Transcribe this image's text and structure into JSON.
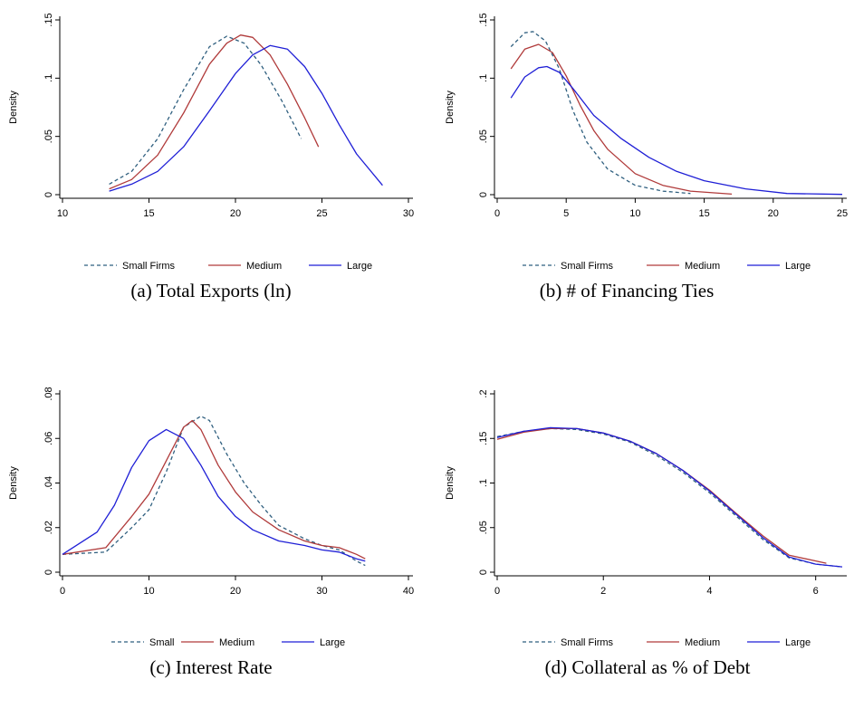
{
  "chart_data": [
    {
      "type": "line",
      "caption": "(a)  Total Exports (ln)",
      "ylabel": "Density",
      "xlim": [
        10,
        30
      ],
      "ylim": [
        0,
        0.15
      ],
      "xticks": [
        10,
        15,
        20,
        25,
        30
      ],
      "xtick_labels": [
        "10",
        "15",
        "20",
        "25",
        "30"
      ],
      "yticks": [
        0,
        0.05,
        0.1,
        0.15
      ],
      "ytick_labels": [
        "0",
        ".05",
        ".1",
        ".15"
      ],
      "legend_position": "bottom",
      "series": [
        {
          "name": "Small Firms",
          "color": "#2f5f7f",
          "dash": "dashed",
          "x": [
            12.7,
            14,
            15.5,
            17,
            18.5,
            19.5,
            20.5,
            21.5,
            22.7,
            23.8
          ],
          "y": [
            0.009,
            0.02,
            0.048,
            0.09,
            0.127,
            0.136,
            0.13,
            0.111,
            0.08,
            0.048
          ]
        },
        {
          "name": "Medium",
          "color": "#b03a3a",
          "dash": "solid",
          "x": [
            12.7,
            14,
            15.5,
            17,
            18.5,
            19.5,
            20.3,
            21,
            22,
            23,
            24,
            24.8
          ],
          "y": [
            0.005,
            0.013,
            0.034,
            0.07,
            0.112,
            0.13,
            0.137,
            0.135,
            0.12,
            0.095,
            0.066,
            0.041
          ]
        },
        {
          "name": "Large",
          "color": "#1f1fd6",
          "dash": "solid",
          "x": [
            12.7,
            14,
            15.5,
            17,
            18.5,
            20,
            21,
            22,
            23,
            24,
            25,
            26,
            27,
            28.5
          ],
          "y": [
            0.003,
            0.009,
            0.02,
            0.041,
            0.072,
            0.104,
            0.12,
            0.128,
            0.125,
            0.11,
            0.087,
            0.06,
            0.035,
            0.008
          ]
        }
      ]
    },
    {
      "type": "line",
      "caption": "(b)  # of Financing Ties",
      "ylabel": "Density",
      "xlim": [
        0,
        25
      ],
      "ylim": [
        0,
        0.15
      ],
      "xticks": [
        0,
        5,
        10,
        15,
        20,
        25
      ],
      "xtick_labels": [
        "0",
        "5",
        "10",
        "15",
        "20",
        "25"
      ],
      "yticks": [
        0,
        0.05,
        0.1,
        0.15
      ],
      "ytick_labels": [
        "0",
        ".05",
        ".1",
        ".15"
      ],
      "legend_position": "bottom",
      "series": [
        {
          "name": "Small Firms",
          "color": "#2f5f7f",
          "dash": "dashed",
          "x": [
            1,
            2,
            2.6,
            3.5,
            4.5,
            5.5,
            6.5,
            8,
            10,
            12,
            14
          ],
          "y": [
            0.127,
            0.139,
            0.14,
            0.132,
            0.108,
            0.072,
            0.045,
            0.022,
            0.008,
            0.003,
            0.001
          ]
        },
        {
          "name": "Medium",
          "color": "#b03a3a",
          "dash": "solid",
          "x": [
            1,
            2,
            3,
            4,
            5,
            6,
            7,
            8,
            10,
            12,
            14,
            17
          ],
          "y": [
            0.108,
            0.125,
            0.129,
            0.122,
            0.102,
            0.077,
            0.055,
            0.039,
            0.018,
            0.008,
            0.003,
            0.0005
          ]
        },
        {
          "name": "Large",
          "color": "#1f1fd6",
          "dash": "solid",
          "x": [
            1,
            2,
            3,
            3.6,
            4.5,
            5.5,
            7,
            9,
            11,
            13,
            15,
            18,
            21,
            25
          ],
          "y": [
            0.083,
            0.101,
            0.109,
            0.11,
            0.105,
            0.091,
            0.068,
            0.048,
            0.032,
            0.02,
            0.012,
            0.005,
            0.001,
            0.0002
          ]
        }
      ]
    },
    {
      "type": "line",
      "caption": "(c)  Interest Rate",
      "ylabel": "Density",
      "xlim": [
        0,
        40
      ],
      "ylim": [
        0,
        0.08
      ],
      "xticks": [
        0,
        10,
        20,
        30,
        40
      ],
      "xtick_labels": [
        "0",
        "10",
        "20",
        "30",
        "40"
      ],
      "yticks": [
        0,
        0.02,
        0.04,
        0.06,
        0.08
      ],
      "ytick_labels": [
        "0",
        ".02",
        ".04",
        ".06",
        ".08"
      ],
      "legend_position": "bottom",
      "series": [
        {
          "name": "Small",
          "color": "#2f5f7f",
          "dash": "dashed",
          "x": [
            0,
            5,
            8,
            10,
            12,
            14,
            16,
            17,
            19,
            21,
            23,
            25,
            28,
            30,
            32,
            34,
            35
          ],
          "y": [
            0.008,
            0.009,
            0.02,
            0.028,
            0.045,
            0.065,
            0.07,
            0.068,
            0.053,
            0.04,
            0.03,
            0.021,
            0.015,
            0.012,
            0.01,
            0.005,
            0.003
          ]
        },
        {
          "name": "Medium",
          "color": "#b03a3a",
          "dash": "solid",
          "x": [
            0,
            5,
            8,
            10,
            12,
            14,
            15,
            16,
            18,
            20,
            22,
            25,
            28,
            30,
            32,
            34,
            35
          ],
          "y": [
            0.008,
            0.011,
            0.025,
            0.035,
            0.05,
            0.065,
            0.068,
            0.064,
            0.048,
            0.036,
            0.027,
            0.019,
            0.014,
            0.012,
            0.011,
            0.008,
            0.006
          ]
        },
        {
          "name": "Large",
          "color": "#1f1fd6",
          "dash": "solid",
          "x": [
            0,
            4,
            6,
            8,
            10,
            12,
            14,
            16,
            18,
            20,
            22,
            25,
            28,
            30,
            32,
            34,
            35
          ],
          "y": [
            0.008,
            0.018,
            0.03,
            0.047,
            0.059,
            0.064,
            0.06,
            0.048,
            0.034,
            0.025,
            0.019,
            0.014,
            0.012,
            0.01,
            0.009,
            0.006,
            0.005
          ]
        }
      ]
    },
    {
      "type": "line",
      "caption": "(d)  Collateral as % of Debt",
      "ylabel": "Density",
      "xlim": [
        0,
        6.5
      ],
      "ylim": [
        0,
        0.2
      ],
      "xticks": [
        0,
        2,
        4,
        6
      ],
      "xtick_labels": [
        "0",
        "2",
        "4",
        "6"
      ],
      "yticks": [
        0,
        0.05,
        0.1,
        0.15,
        0.2
      ],
      "ytick_labels": [
        "0",
        ".05",
        ".1",
        ".15",
        ".2"
      ],
      "legend_position": "bottom",
      "series": [
        {
          "name": "Small Firms",
          "color": "#2f5f7f",
          "dash": "dashed",
          "x": [
            0,
            0.5,
            1,
            1.5,
            2,
            2.5,
            3,
            3.5,
            4,
            4.5,
            5,
            5.5,
            6,
            6.5
          ],
          "y": [
            0.152,
            0.158,
            0.161,
            0.16,
            0.155,
            0.146,
            0.131,
            0.112,
            0.089,
            0.063,
            0.037,
            0.016,
            0.009,
            0.006
          ]
        },
        {
          "name": "Medium",
          "color": "#b03a3a",
          "dash": "solid",
          "x": [
            0,
            0.5,
            1,
            1.5,
            2,
            2.5,
            3,
            3.5,
            4,
            4.5,
            5,
            5.5,
            6.2
          ],
          "y": [
            0.149,
            0.157,
            0.161,
            0.161,
            0.156,
            0.147,
            0.133,
            0.114,
            0.092,
            0.066,
            0.041,
            0.019,
            0.01
          ]
        },
        {
          "name": "Large",
          "color": "#1f1fd6",
          "dash": "solid",
          "x": [
            0,
            0.5,
            1,
            1.5,
            2,
            2.5,
            3,
            3.5,
            4,
            4.5,
            5,
            5.5,
            6,
            6.5
          ],
          "y": [
            0.151,
            0.158,
            0.162,
            0.161,
            0.156,
            0.147,
            0.133,
            0.114,
            0.091,
            0.065,
            0.039,
            0.017,
            0.009,
            0.006
          ]
        }
      ]
    }
  ]
}
